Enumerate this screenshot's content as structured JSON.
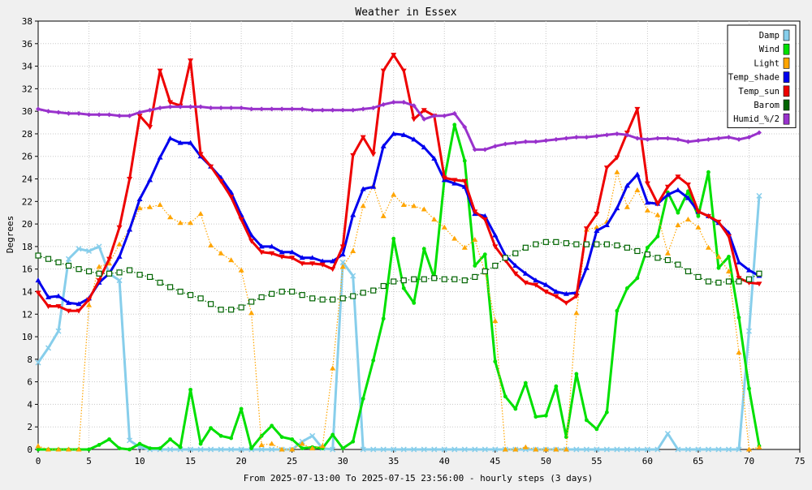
{
  "chart_data": {
    "type": "line",
    "title": "Weather in Essex",
    "xlabel": "From 2025-07-13:00 To 2025-07-15 23:56:00 - hourly steps (3 days)",
    "ylabel": "Degrees",
    "xlim": [
      0,
      75
    ],
    "ylim": [
      0,
      38
    ],
    "xticks": [
      0,
      5,
      10,
      15,
      20,
      25,
      30,
      35,
      40,
      45,
      50,
      55,
      60,
      65,
      70,
      75
    ],
    "yticks": [
      0,
      2,
      4,
      6,
      8,
      10,
      12,
      14,
      16,
      18,
      20,
      22,
      24,
      26,
      28,
      30,
      32,
      34,
      36,
      38
    ],
    "grid": true,
    "legend_position": "top-right",
    "series": [
      {
        "name": "Damp",
        "color": "#87ceeb",
        "style": "solid",
        "marker": "x",
        "values": [
          7.7,
          9.0,
          10.5,
          16.9,
          17.8,
          17.6,
          18.0,
          15.6,
          15.0,
          0.8,
          0.2,
          0,
          0,
          0,
          0,
          0,
          0,
          0,
          0,
          0,
          0,
          0,
          0,
          0,
          0,
          0,
          0.7,
          1.2,
          0.1,
          0,
          16.6,
          15.4,
          0,
          0,
          0,
          0,
          0,
          0,
          0,
          0,
          0,
          0,
          0,
          0,
          0,
          0,
          0,
          0,
          0,
          0,
          0,
          0,
          0,
          0,
          0,
          0,
          0,
          0,
          0,
          0,
          0,
          0,
          1.4,
          0,
          0,
          0,
          0,
          0,
          0,
          0,
          10.5,
          22.5
        ]
      },
      {
        "name": "Wind",
        "color": "#00e000",
        "style": "solid",
        "marker": "circle",
        "values": [
          0,
          0,
          0,
          0,
          0,
          0,
          0.4,
          0.9,
          0.1,
          0,
          0.5,
          0.1,
          0.1,
          0.9,
          0.2,
          5.3,
          0.5,
          1.9,
          1.2,
          1.0,
          3.6,
          0.1,
          1.2,
          2.1,
          1.1,
          0.9,
          0.1,
          0.2,
          0.1,
          1.3,
          0.1,
          0.7,
          4.5,
          7.9,
          11.6,
          18.7,
          14.3,
          13.0,
          17.8,
          15.2,
          24.0,
          28.8,
          25.6,
          16.3,
          17.3,
          7.8,
          4.7,
          3.6,
          5.9,
          2.9,
          3.0,
          5.6,
          1.1,
          6.7,
          2.6,
          1.8,
          3.3,
          12.3,
          14.3,
          15.2,
          17.9,
          18.9,
          22.8,
          21.0,
          22.9,
          20.7,
          24.6,
          16.1,
          17.1,
          11.7,
          5.4,
          0.3
        ]
      },
      {
        "name": "Light",
        "color": "#ffa500",
        "style": "dotted",
        "marker": "triangle",
        "values": [
          0.3,
          0,
          0,
          0,
          0,
          12.8,
          16.2,
          16.5,
          18.2,
          19.5,
          21.4,
          21.5,
          21.7,
          20.6,
          20.1,
          20.1,
          20.9,
          18.1,
          17.4,
          16.8,
          15.9,
          12.1,
          0.4,
          0.5,
          0,
          0,
          0.5,
          0.1,
          0.3,
          7.2,
          16.2,
          17.6,
          21.6,
          23.4,
          20.7,
          22.6,
          21.7,
          21.6,
          21.3,
          20.4,
          19.7,
          18.7,
          17.9,
          18.6,
          15.7,
          11.4,
          0,
          0,
          0.2,
          0,
          0,
          0,
          0,
          12.1,
          19.5,
          19.7,
          20.2,
          24.6,
          21.5,
          23.0,
          21.2,
          20.8,
          17.4,
          19.9,
          20.4,
          19.7,
          17.9,
          17.1,
          15.8,
          8.6,
          0,
          0.2
        ]
      },
      {
        "name": "Temp_shade",
        "color": "#0000ee",
        "style": "solid",
        "marker": "triangle",
        "values": [
          15.0,
          13.5,
          13.6,
          13.0,
          12.9,
          13.4,
          14.8,
          15.6,
          17.1,
          19.5,
          22.2,
          23.9,
          25.9,
          27.6,
          27.2,
          27.2,
          26.0,
          25.1,
          24.1,
          22.8,
          20.8,
          19.0,
          18.0,
          18.0,
          17.5,
          17.5,
          17.0,
          17.0,
          16.7,
          16.7,
          17.3,
          20.8,
          23.1,
          23.3,
          26.9,
          28.0,
          27.9,
          27.5,
          26.8,
          25.8,
          23.9,
          23.6,
          23.3,
          20.9,
          20.7,
          19.0,
          17.2,
          16.3,
          15.6,
          15.0,
          14.6,
          14.0,
          13.8,
          13.9,
          16.1,
          19.4,
          19.9,
          21.4,
          23.4,
          24.4,
          21.9,
          21.8,
          22.6,
          23.0,
          22.3,
          21.1,
          20.7,
          20.1,
          19.2,
          16.6,
          15.9,
          15.4
        ]
      },
      {
        "name": "Temp_sun",
        "color": "#ee0000",
        "style": "solid",
        "marker": "triangle-down",
        "values": [
          13.9,
          12.7,
          12.7,
          12.3,
          12.3,
          13.3,
          15.0,
          16.9,
          19.7,
          24.0,
          29.6,
          28.6,
          33.6,
          30.8,
          30.5,
          34.5,
          26.2,
          25.1,
          23.8,
          22.4,
          20.4,
          18.5,
          17.5,
          17.4,
          17.1,
          17.0,
          16.5,
          16.5,
          16.4,
          16.0,
          18.0,
          26.1,
          27.7,
          26.2,
          33.6,
          35.0,
          33.6,
          29.3,
          30.1,
          29.6,
          24.1,
          23.9,
          23.8,
          21.1,
          20.4,
          18.0,
          16.8,
          15.6,
          14.8,
          14.6,
          14.0,
          13.6,
          13.0,
          13.6,
          19.6,
          20.9,
          25.0,
          25.9,
          28.1,
          30.2,
          23.6,
          21.8,
          23.3,
          24.2,
          23.5,
          21.1,
          20.7,
          20.2,
          18.9,
          15.2,
          14.8,
          14.7
        ]
      },
      {
        "name": "Barom",
        "color": "#006400",
        "style": "dotted",
        "marker": "square",
        "values": [
          17.2,
          16.9,
          16.6,
          16.3,
          16.0,
          15.8,
          15.6,
          15.6,
          15.7,
          15.9,
          15.5,
          15.3,
          14.8,
          14.4,
          14.0,
          13.7,
          13.4,
          12.9,
          12.4,
          12.4,
          12.6,
          13.1,
          13.5,
          13.8,
          14.0,
          14.0,
          13.7,
          13.4,
          13.3,
          13.3,
          13.4,
          13.6,
          13.9,
          14.1,
          14.5,
          14.9,
          15.0,
          15.1,
          15.1,
          15.2,
          15.1,
          15.1,
          15.0,
          15.3,
          15.8,
          16.3,
          17.0,
          17.4,
          17.9,
          18.2,
          18.4,
          18.4,
          18.3,
          18.2,
          18.2,
          18.2,
          18.2,
          18.1,
          17.9,
          17.6,
          17.3,
          17.0,
          16.8,
          16.4,
          15.8,
          15.3,
          14.9,
          14.8,
          14.9,
          14.9,
          15.1,
          15.6
        ]
      },
      {
        "name": "Humid_%/2",
        "color": "#9932cc",
        "style": "solid",
        "marker": "diamond",
        "values": [
          30.2,
          30.0,
          29.9,
          29.8,
          29.8,
          29.7,
          29.7,
          29.7,
          29.6,
          29.6,
          29.9,
          30.1,
          30.3,
          30.4,
          30.4,
          30.4,
          30.4,
          30.3,
          30.3,
          30.3,
          30.3,
          30.2,
          30.2,
          30.2,
          30.2,
          30.2,
          30.2,
          30.1,
          30.1,
          30.1,
          30.1,
          30.1,
          30.2,
          30.3,
          30.6,
          30.8,
          30.8,
          30.5,
          29.3,
          29.6,
          29.6,
          29.8,
          28.6,
          26.6,
          26.6,
          26.9,
          27.1,
          27.2,
          27.3,
          27.3,
          27.4,
          27.5,
          27.6,
          27.7,
          27.7,
          27.8,
          27.9,
          28.0,
          27.9,
          27.6,
          27.5,
          27.6,
          27.6,
          27.5,
          27.3,
          27.4,
          27.5,
          27.6,
          27.7,
          27.5,
          27.7,
          28.1
        ]
      }
    ]
  }
}
